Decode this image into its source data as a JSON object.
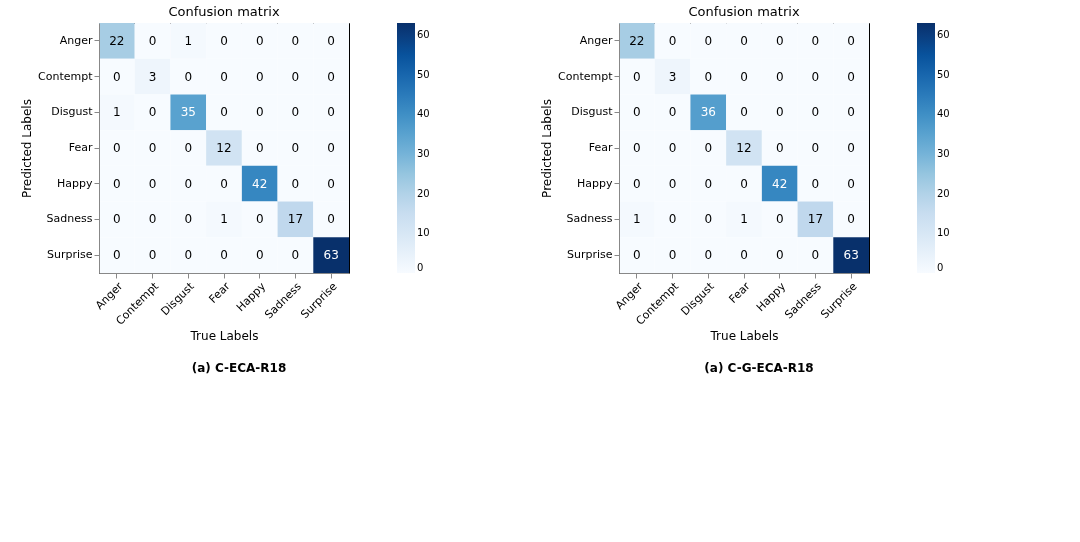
{
  "chart_data": [
    {
      "type": "heatmap",
      "title": "Confusion matrix",
      "xlabel": "True Labels",
      "ylabel": "Predicted Labels",
      "categories": [
        "Anger",
        "Contempt",
        "Disgust",
        "Fear",
        "Happy",
        "Sadness",
        "Surprise"
      ],
      "y_categories": [
        "Anger",
        "Contempt",
        "Disgust",
        "Fear",
        "Happy",
        "Sadness",
        "Surprise"
      ],
      "cells": [
        [
          22,
          0,
          1,
          0,
          0,
          0,
          0
        ],
        [
          0,
          3,
          0,
          0,
          0,
          0,
          0
        ],
        [
          1,
          0,
          35,
          0,
          0,
          0,
          0
        ],
        [
          0,
          0,
          0,
          12,
          0,
          0,
          0
        ],
        [
          0,
          0,
          0,
          0,
          42,
          0,
          0
        ],
        [
          0,
          0,
          0,
          1,
          0,
          17,
          0
        ],
        [
          0,
          0,
          0,
          0,
          0,
          0,
          63
        ]
      ],
      "clim": [
        0,
        63
      ],
      "cticks": [
        0,
        10,
        20,
        30,
        40,
        50,
        60
      ],
      "data_labels": true,
      "annotations": [
        "(a) C-ECA-R18"
      ]
    },
    {
      "type": "heatmap",
      "title": "Confusion matrix",
      "xlabel": "True Labels",
      "ylabel": "Predicted Labels",
      "categories": [
        "Anger",
        "Contempt",
        "Disgust",
        "Fear",
        "Happy",
        "Sadness",
        "Surprise"
      ],
      "y_categories": [
        "Anger",
        "Contempt",
        "Disgust",
        "Fear",
        "Happy",
        "Sadness",
        "Surprise"
      ],
      "cells": [
        [
          22,
          0,
          0,
          0,
          0,
          0,
          0
        ],
        [
          0,
          3,
          0,
          0,
          0,
          0,
          0
        ],
        [
          0,
          0,
          36,
          0,
          0,
          0,
          0
        ],
        [
          0,
          0,
          0,
          12,
          0,
          0,
          0
        ],
        [
          0,
          0,
          0,
          0,
          42,
          0,
          0
        ],
        [
          1,
          0,
          0,
          1,
          0,
          17,
          0
        ],
        [
          0,
          0,
          0,
          0,
          0,
          0,
          63
        ]
      ],
      "clim": [
        0,
        63
      ],
      "cticks": [
        0,
        10,
        20,
        30,
        40,
        50,
        60
      ],
      "data_labels": true,
      "annotations": [
        "(a) C-G-ECA-R18"
      ]
    }
  ]
}
